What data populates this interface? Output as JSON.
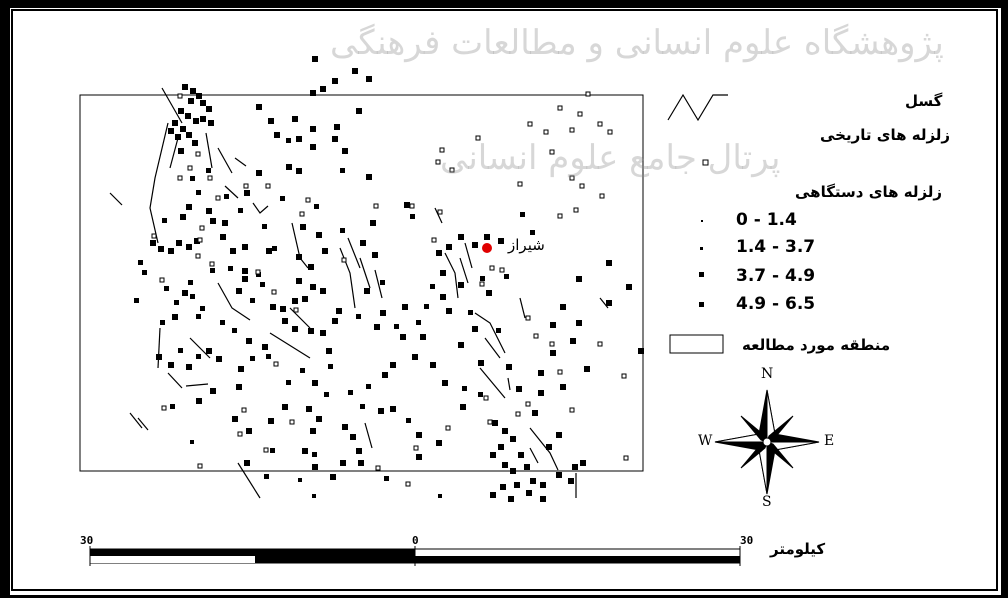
{
  "watermark": {
    "line1": "پژوهشگاه علوم انسانی و مطالعات فرهنگی",
    "line2": "پرتال جامع علوم انسانی"
  },
  "city": {
    "name": "شیراز",
    "marker_color": "#e00000"
  },
  "legend": {
    "fault_label": "گسل",
    "historical_label": "زلزله های تاریخی",
    "instrumental_label": "زلزله  های دستگاهی",
    "ranges": [
      "0 - 1.4",
      "1.4 - 3.7",
      "3.7 - 4.9",
      "4.9 - 6.5"
    ],
    "study_area_label": "منطقه مورد مطالعه"
  },
  "compass": {
    "n": "N",
    "s": "S",
    "e": "E",
    "w": "W"
  },
  "scale": {
    "unit_label": "کیلومتر",
    "ticks": [
      "30",
      "0",
      "30"
    ]
  },
  "colors": {
    "frame": "#000000",
    "marker": "#000000",
    "city": "#e00000"
  }
}
